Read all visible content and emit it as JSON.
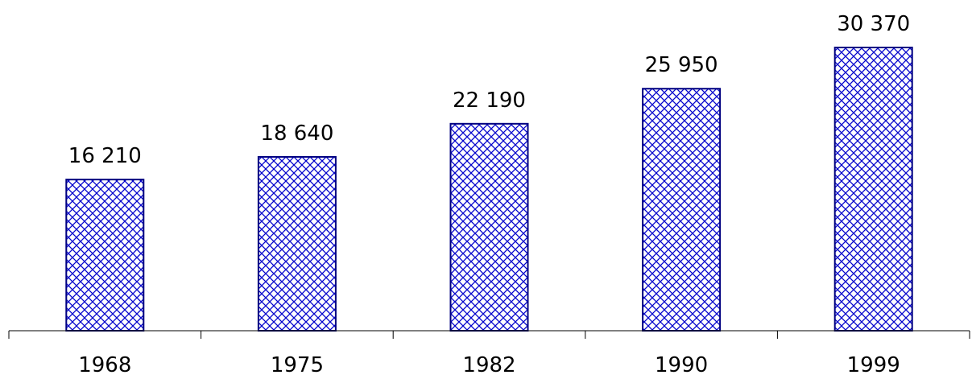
{
  "chart_data": {
    "type": "bar",
    "categories": [
      "1968",
      "1975",
      "1982",
      "1990",
      "1999"
    ],
    "values": [
      16210,
      18640,
      22190,
      25950,
      30370
    ],
    "value_labels": [
      "16 210",
      "18 640",
      "22 190",
      "25 950",
      "30 370"
    ],
    "title": "",
    "xlabel": "",
    "ylabel": "",
    "ylim": [
      0,
      30370
    ],
    "grid": false,
    "legend": "none",
    "colors": {
      "bar_stroke": "#000080",
      "bar_hatch": "#0000cc",
      "bar_background": "#ffffff",
      "axis": "#000000"
    }
  }
}
